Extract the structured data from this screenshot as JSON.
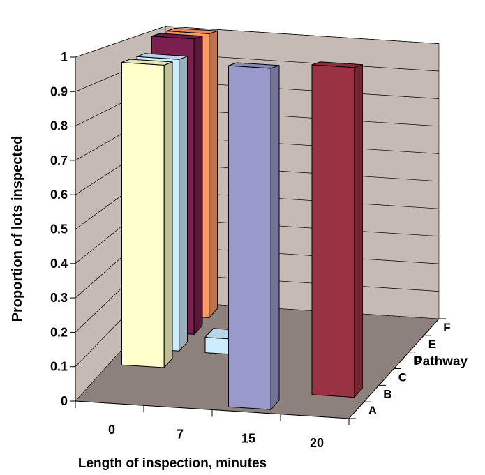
{
  "chart_data": {
    "type": "bar",
    "subtype": "3d-column",
    "ylabel": "Proportion of lots inspected",
    "xlabel": "Length of inspection, minutes",
    "zlabel": "Pathway",
    "x_ticks": [
      "0",
      "7",
      "15",
      "20"
    ],
    "y_ticks": [
      "0",
      "0.1",
      "0.2",
      "0.3",
      "0.4",
      "0.5",
      "0.6",
      "0.7",
      "0.8",
      "0.9",
      "1"
    ],
    "z_ticks": [
      "A",
      "B",
      "C",
      "D",
      "E",
      "F"
    ],
    "ylim": [
      0,
      1
    ],
    "grid": true,
    "bars": [
      {
        "x": "0",
        "pathway": "F",
        "value": 1.0,
        "color": "#FF9966"
      },
      {
        "x": "0",
        "pathway": "E",
        "value": 1.0,
        "color": "#7A1F4E"
      },
      {
        "x": "0",
        "pathway": "D",
        "value": 0.95,
        "color": "#CCECFF"
      },
      {
        "x": "0",
        "pathway": "C",
        "value": 0.95,
        "color": "#FFFFCC"
      },
      {
        "x": "7",
        "pathway": "D",
        "value": 0.05,
        "color": "#CCECFF"
      },
      {
        "x": "15",
        "pathway": "A",
        "value": 1.0,
        "color": "#9999CC"
      },
      {
        "x": "20",
        "pathway": "B",
        "value": 1.0,
        "color": "#993344"
      }
    ]
  }
}
